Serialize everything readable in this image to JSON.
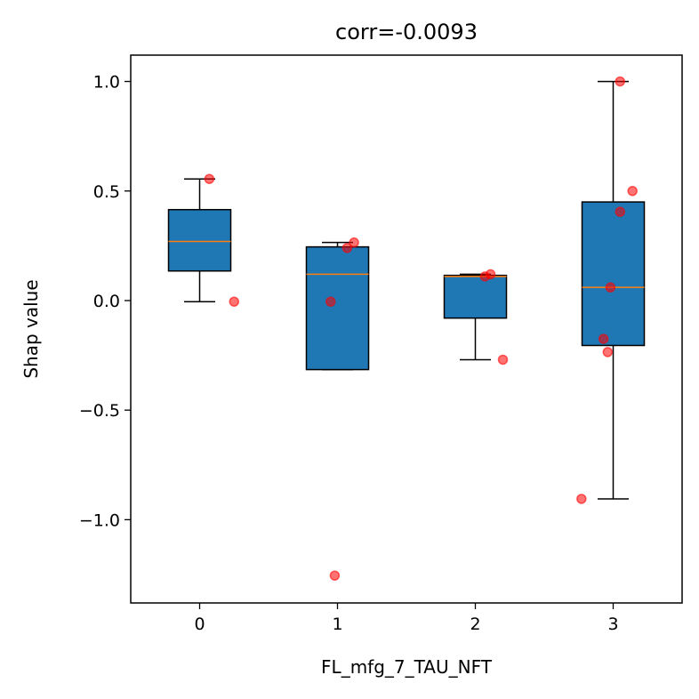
{
  "chart_data": {
    "type": "box",
    "title": "corr=-0.0093",
    "xlabel": "FL_mfg_7_TAU_NFT",
    "ylabel": "Shap value",
    "categories": [
      "0",
      "1",
      "2",
      "3"
    ],
    "xlim": [
      -0.5,
      3.5
    ],
    "ylim": [
      -1.38,
      1.12
    ],
    "yticks": [
      1.0,
      0.5,
      0.0,
      -0.5,
      -1.0
    ],
    "ytick_labels": [
      "1.0",
      "0.5",
      "0.0",
      "−0.5",
      "−1.0"
    ],
    "grid": false,
    "box_color": "#1f77b4",
    "median_color": "#ff7f0e",
    "point_color": "#ff0000",
    "boxes": [
      {
        "category": "0",
        "whisker_low": -0.005,
        "q1": 0.135,
        "median": 0.27,
        "q3": 0.415,
        "whisker_high": 0.555
      },
      {
        "category": "1",
        "whisker_low": -0.315,
        "q1": -0.315,
        "median": 0.12,
        "q3": 0.245,
        "whisker_high": 0.265
      },
      {
        "category": "2",
        "whisker_low": -0.27,
        "q1": -0.08,
        "median": 0.11,
        "q3": 0.115,
        "whisker_high": 0.12
      },
      {
        "category": "3",
        "whisker_low": -0.905,
        "q1": -0.205,
        "median": 0.06,
        "q3": 0.45,
        "whisker_high": 1.0
      }
    ],
    "points": [
      {
        "x": 0.07,
        "y": 0.555
      },
      {
        "x": 0.25,
        "y": -0.005
      },
      {
        "x": 0.95,
        "y": -0.005
      },
      {
        "x": 0.98,
        "y": -1.255
      },
      {
        "x": 1.07,
        "y": 0.24
      },
      {
        "x": 1.12,
        "y": 0.265
      },
      {
        "x": 2.07,
        "y": 0.11
      },
      {
        "x": 2.11,
        "y": 0.12
      },
      {
        "x": 2.2,
        "y": -0.27
      },
      {
        "x": 2.77,
        "y": -0.905
      },
      {
        "x": 2.93,
        "y": -0.175
      },
      {
        "x": 2.96,
        "y": -0.235
      },
      {
        "x": 2.98,
        "y": 0.06
      },
      {
        "x": 3.05,
        "y": 0.405
      },
      {
        "x": 3.05,
        "y": 1.0
      },
      {
        "x": 3.14,
        "y": 0.5
      }
    ]
  }
}
